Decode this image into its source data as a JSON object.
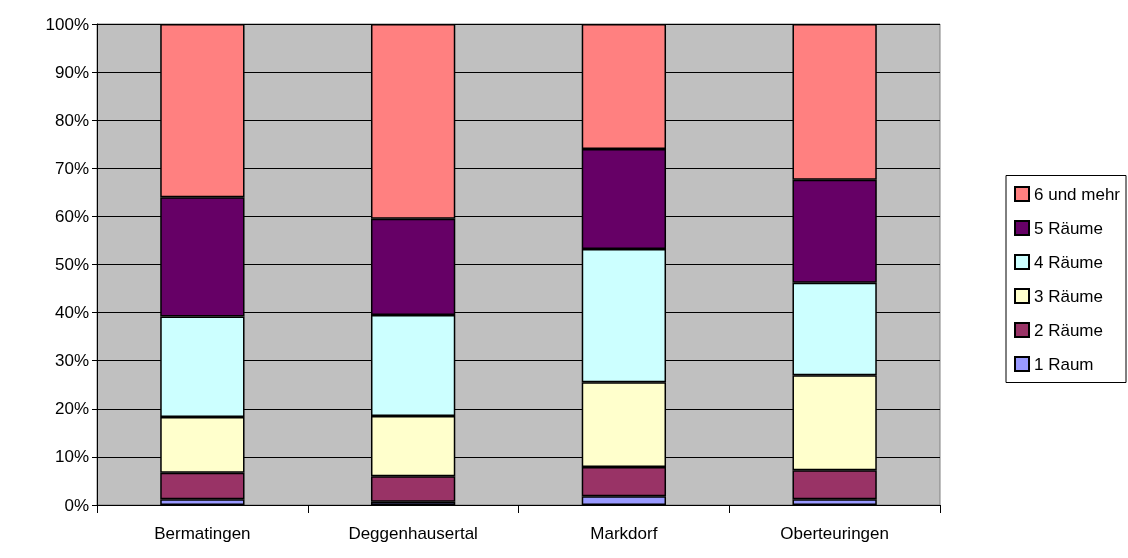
{
  "chart_data": {
    "type": "bar",
    "stacked": true,
    "categories": [
      "Bermatingen",
      "Deggenhausertal",
      "Markdorf",
      "Oberteuringen"
    ],
    "series": [
      {
        "name": "1 Raum",
        "color": "#9999ff",
        "values": [
          1.2,
          0.7,
          1.8,
          1.2
        ]
      },
      {
        "name": "2 Räume",
        "color": "#993366",
        "values": [
          5.5,
          5.3,
          6.1,
          6.0
        ]
      },
      {
        "name": "3 Räume",
        "color": "#ffffcc",
        "values": [
          11.6,
          12.5,
          17.6,
          19.8
        ]
      },
      {
        "name": "4 Räume",
        "color": "#ccffff",
        "values": [
          20.9,
          21.0,
          27.7,
          19.2
        ]
      },
      {
        "name": "5 Räume",
        "color": "#660066",
        "values": [
          24.8,
          20.0,
          20.8,
          21.4
        ]
      },
      {
        "name": "6 und mehr",
        "color": "#ff8080",
        "values": [
          36.0,
          40.5,
          26.0,
          32.4
        ]
      }
    ],
    "ylim": [
      0,
      100
    ],
    "yticks": [
      {
        "value": 0,
        "label": "0%"
      },
      {
        "value": 10,
        "label": "10%"
      },
      {
        "value": 20,
        "label": "20%"
      },
      {
        "value": 30,
        "label": "30%"
      },
      {
        "value": 40,
        "label": "40%"
      },
      {
        "value": 50,
        "label": "50%"
      },
      {
        "value": 60,
        "label": "60%"
      },
      {
        "value": 70,
        "label": "70%"
      },
      {
        "value": 80,
        "label": "80%"
      },
      {
        "value": 90,
        "label": "90%"
      },
      {
        "value": 100,
        "label": "100%"
      }
    ],
    "grid": "y",
    "legend": "right"
  }
}
